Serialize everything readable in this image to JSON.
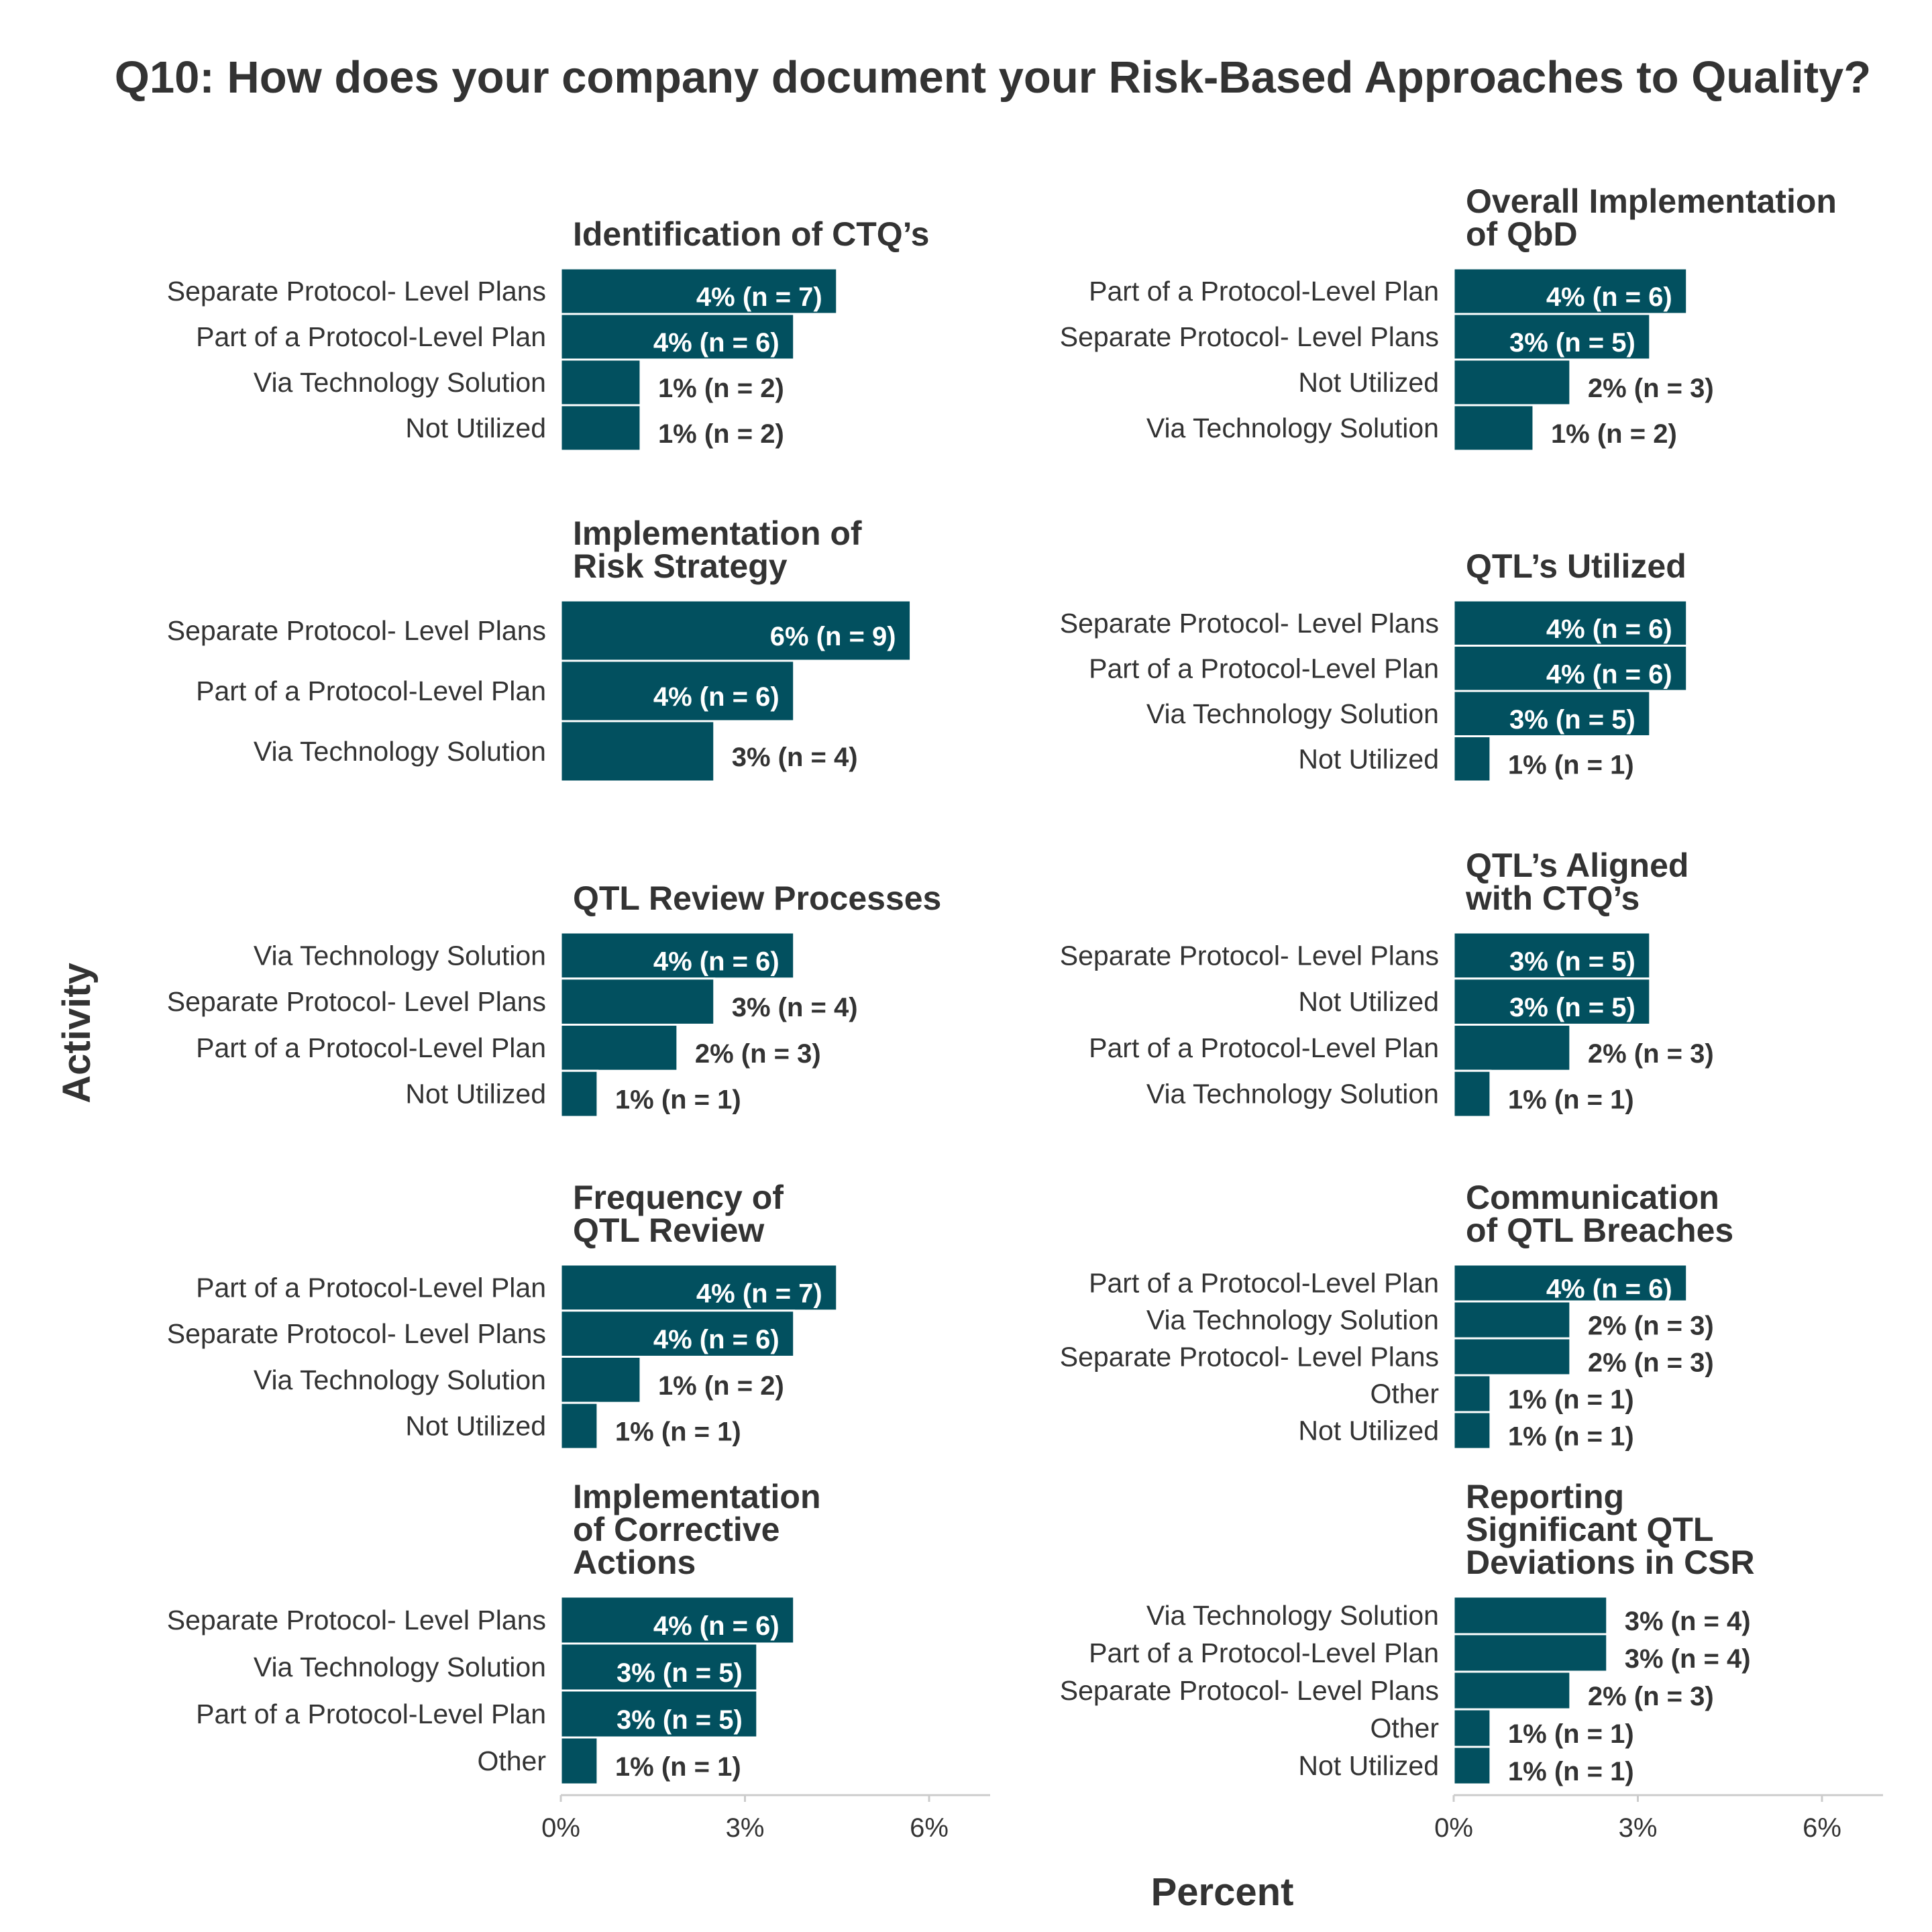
{
  "chart_data": {
    "type": "bar",
    "orientation": "horizontal",
    "title": "Q10: How does your company document your Risk-Based Approaches to Quality?",
    "xlabel": "Percent",
    "ylabel": "Activity",
    "xlim": [
      0,
      7
    ],
    "x_ticks": [
      "0%",
      "3%",
      "6%"
    ],
    "bar_color": "#02505f",
    "panels": [
      {
        "title": [
          "Identification of CTQ’s"
        ],
        "categories": [
          "Separate Protocol- Level Plans",
          "Part of a Protocol-Level Plan",
          "Via Technology Solution",
          "Not Utilized"
        ],
        "values": [
          4.5,
          3.8,
          1.3,
          1.3
        ],
        "labels": [
          "4% (n = 7)",
          "4% (n = 6)",
          "1% (n = 2)",
          "1% (n = 2)"
        ]
      },
      {
        "title": [
          "Overall Implementation",
          "of QbD"
        ],
        "categories": [
          "Part of a Protocol-Level Plan",
          "Separate Protocol- Level Plans",
          "Not Utilized",
          "Via Technology Solution"
        ],
        "values": [
          3.8,
          3.2,
          1.9,
          1.3
        ],
        "labels": [
          "4% (n = 6)",
          "3% (n = 5)",
          "2% (n = 3)",
          "1% (n = 2)"
        ]
      },
      {
        "title": [
          "Implementation of",
          "Risk Strategy"
        ],
        "categories": [
          "Separate Protocol- Level Plans",
          "Part of a Protocol-Level Plan",
          "Via Technology Solution"
        ],
        "values": [
          5.7,
          3.8,
          2.5
        ],
        "labels": [
          "6% (n = 9)",
          "4% (n = 6)",
          "3% (n = 4)"
        ]
      },
      {
        "title": [
          "QTL’s Utilized"
        ],
        "categories": [
          "Separate Protocol- Level Plans",
          "Part of a Protocol-Level Plan",
          "Via Technology Solution",
          "Not Utilized"
        ],
        "values": [
          3.8,
          3.8,
          3.2,
          0.6
        ],
        "labels": [
          "4% (n = 6)",
          "4% (n = 6)",
          "3% (n = 5)",
          "1% (n = 1)"
        ]
      },
      {
        "title": [
          "QTL Review Processes"
        ],
        "categories": [
          "Via Technology Solution",
          "Separate Protocol- Level Plans",
          "Part of a Protocol-Level Plan",
          "Not Utilized"
        ],
        "values": [
          3.8,
          2.5,
          1.9,
          0.6
        ],
        "labels": [
          "4% (n = 6)",
          "3% (n = 4)",
          "2% (n = 3)",
          "1% (n = 1)"
        ]
      },
      {
        "title": [
          "QTL’s Aligned",
          "with CTQ’s"
        ],
        "categories": [
          "Separate Protocol- Level Plans",
          "Not Utilized",
          "Part of a Protocol-Level Plan",
          "Via Technology Solution"
        ],
        "values": [
          3.2,
          3.2,
          1.9,
          0.6
        ],
        "labels": [
          "3% (n = 5)",
          "3% (n = 5)",
          "2% (n = 3)",
          "1% (n = 1)"
        ]
      },
      {
        "title": [
          "Frequency of",
          "QTL Review"
        ],
        "categories": [
          "Part of a Protocol-Level Plan",
          "Separate Protocol- Level Plans",
          "Via Technology Solution",
          "Not Utilized"
        ],
        "values": [
          4.5,
          3.8,
          1.3,
          0.6
        ],
        "labels": [
          "4% (n = 7)",
          "4% (n = 6)",
          "1% (n = 2)",
          "1% (n = 1)"
        ]
      },
      {
        "title": [
          "Communication",
          "of QTL Breaches"
        ],
        "categories": [
          "Part of a Protocol-Level Plan",
          "Via Technology Solution",
          "Separate Protocol- Level Plans",
          "Other",
          "Not Utilized"
        ],
        "values": [
          3.8,
          1.9,
          1.9,
          0.6,
          0.6
        ],
        "labels": [
          "4% (n = 6)",
          "2% (n = 3)",
          "2% (n = 3)",
          "1% (n = 1)",
          "1% (n = 1)"
        ]
      },
      {
        "title": [
          "Implementation",
          "of Corrective",
          "Actions"
        ],
        "categories": [
          "Separate Protocol- Level Plans",
          "Via Technology Solution",
          "Part of a Protocol-Level Plan",
          "Other"
        ],
        "values": [
          3.8,
          3.2,
          3.2,
          0.6
        ],
        "labels": [
          "4% (n = 6)",
          "3% (n = 5)",
          "3% (n = 5)",
          "1% (n = 1)"
        ]
      },
      {
        "title": [
          "Reporting",
          "Significant QTL",
          "Deviations in CSR"
        ],
        "categories": [
          "Via Technology Solution",
          "Part of a Protocol-Level Plan",
          "Separate Protocol- Level Plans",
          "Other",
          "Not Utilized"
        ],
        "values": [
          2.5,
          2.5,
          1.9,
          0.6,
          0.6
        ],
        "labels": [
          "3% (n = 4)",
          "3% (n = 4)",
          "2% (n = 3)",
          "1% (n = 1)",
          "1% (n = 1)"
        ]
      }
    ]
  }
}
